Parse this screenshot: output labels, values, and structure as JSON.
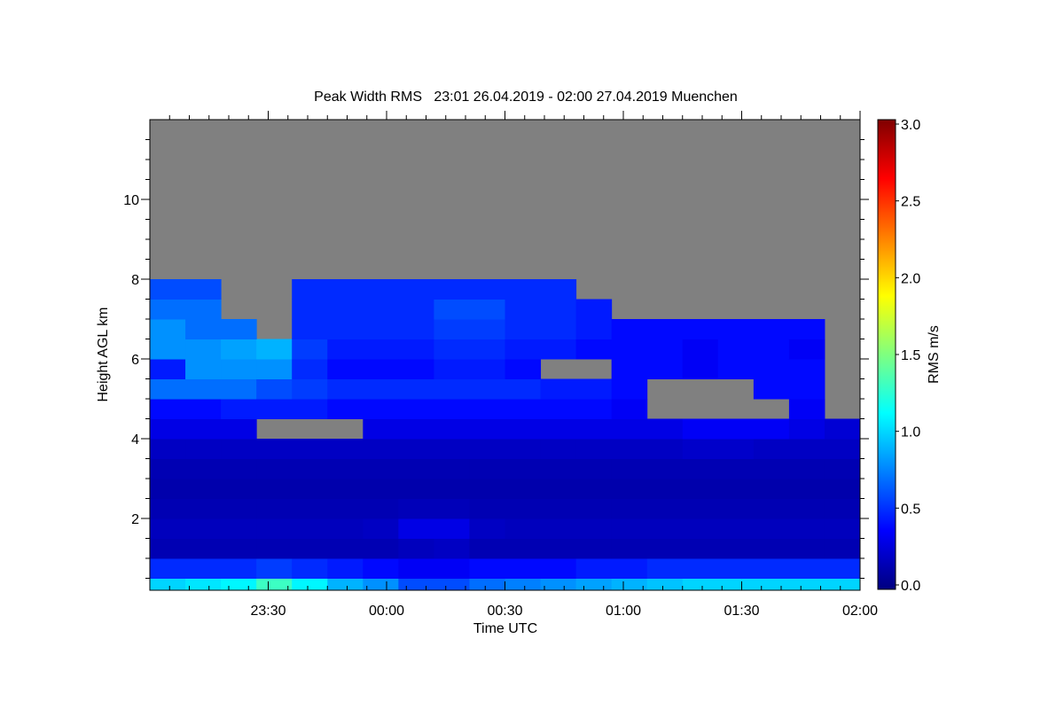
{
  "chart_data": {
    "type": "heatmap",
    "title": "Peak Width RMS   23:01 26.04.2019 - 02:00 27.04.2019 Muenchen",
    "xlabel": "Time UTC",
    "ylabel": "Height AGL km",
    "colorbar": {
      "label": "RMS m/s",
      "range": [
        0.0,
        3.0
      ],
      "ticks": [
        "0.0",
        "0.5",
        "1.0",
        "1.5",
        "2.0",
        "2.5",
        "3.0"
      ],
      "colormap": "jet"
    },
    "x_range_minutes_after_2300": [
      0,
      180
    ],
    "x_ticks": [
      {
        "label": "23:30",
        "minutes": 30
      },
      {
        "label": "00:00",
        "minutes": 60
      },
      {
        "label": "00:30",
        "minutes": 90
      },
      {
        "label": "01:00",
        "minutes": 120
      },
      {
        "label": "01:30",
        "minutes": 150
      },
      {
        "label": "02:00",
        "minutes": 180
      }
    ],
    "y_range_km": [
      0.2,
      12
    ],
    "y_ticks": [
      {
        "label": "2",
        "value": 2
      },
      {
        "label": "4",
        "value": 4
      },
      {
        "label": "6",
        "value": 6
      },
      {
        "label": "8",
        "value": 8
      },
      {
        "label": "10",
        "value": 10
      }
    ],
    "no_data_color": "#808080",
    "time_bin_minutes": 9,
    "height_bin_km": 0.5,
    "grid_rows_bottom_to_top": [
      [
        1.0,
        1.05,
        1.1,
        1.3,
        1.1,
        0.9,
        0.8,
        0.6,
        0.6,
        0.7,
        0.75,
        0.8,
        0.85,
        0.9,
        0.95,
        1.0,
        1.0,
        1.0,
        1.0,
        1.0
      ],
      [
        0.5,
        0.5,
        0.5,
        0.55,
        0.5,
        0.45,
        0.4,
        0.35,
        0.35,
        0.4,
        0.4,
        0.4,
        0.45,
        0.45,
        0.5,
        0.5,
        0.5,
        0.5,
        0.5,
        0.5
      ],
      [
        0.15,
        0.15,
        0.15,
        0.15,
        0.15,
        0.15,
        0.15,
        0.18,
        0.2,
        0.15,
        0.15,
        0.15,
        0.15,
        0.15,
        0.15,
        0.15,
        0.15,
        0.15,
        0.15,
        0.15
      ],
      [
        0.18,
        0.18,
        0.18,
        0.18,
        0.18,
        0.18,
        0.2,
        0.3,
        0.3,
        0.2,
        0.18,
        0.18,
        0.18,
        0.18,
        0.18,
        0.18,
        0.18,
        0.18,
        0.18,
        0.18
      ],
      [
        0.15,
        0.15,
        0.15,
        0.15,
        0.15,
        0.15,
        0.15,
        0.17,
        0.17,
        0.15,
        0.15,
        0.15,
        0.15,
        0.15,
        0.15,
        0.15,
        0.15,
        0.15,
        0.15,
        0.15
      ],
      [
        0.13,
        0.13,
        0.13,
        0.13,
        0.13,
        0.13,
        0.13,
        0.13,
        0.13,
        0.13,
        0.13,
        0.13,
        0.13,
        0.13,
        0.13,
        0.13,
        0.13,
        0.13,
        0.13,
        0.13
      ],
      [
        0.15,
        0.15,
        0.15,
        0.15,
        0.15,
        0.15,
        0.15,
        0.15,
        0.15,
        0.15,
        0.15,
        0.15,
        0.15,
        0.15,
        0.15,
        0.15,
        0.15,
        0.15,
        0.15,
        0.15
      ],
      [
        0.2,
        0.2,
        0.2,
        0.2,
        0.2,
        0.2,
        0.2,
        0.2,
        0.2,
        0.2,
        0.2,
        0.2,
        0.2,
        0.2,
        0.2,
        0.22,
        0.22,
        0.2,
        0.2,
        0.2
      ],
      [
        0.3,
        0.3,
        0.3,
        null,
        null,
        null,
        0.3,
        0.3,
        0.3,
        0.3,
        0.3,
        0.3,
        0.3,
        0.3,
        0.3,
        0.35,
        0.35,
        0.35,
        0.3,
        0.25
      ],
      [
        0.4,
        0.4,
        0.45,
        0.45,
        0.45,
        0.4,
        0.4,
        0.4,
        0.4,
        0.4,
        0.4,
        0.4,
        0.4,
        0.35,
        null,
        null,
        null,
        null,
        0.35,
        null
      ],
      [
        0.7,
        0.7,
        0.7,
        0.6,
        0.55,
        0.5,
        0.5,
        0.5,
        0.5,
        0.5,
        0.5,
        0.45,
        0.45,
        0.4,
        null,
        null,
        null,
        0.4,
        0.4,
        null
      ],
      [
        0.45,
        0.8,
        0.8,
        0.8,
        0.5,
        0.4,
        0.4,
        0.4,
        0.45,
        0.45,
        0.4,
        null,
        null,
        0.4,
        0.4,
        0.35,
        0.4,
        0.4,
        0.4,
        null
      ],
      [
        0.8,
        0.8,
        0.85,
        0.9,
        0.55,
        0.45,
        0.45,
        0.45,
        0.5,
        0.5,
        0.45,
        0.45,
        0.4,
        0.4,
        0.4,
        0.35,
        0.4,
        0.4,
        0.35,
        null
      ],
      [
        0.8,
        0.7,
        0.7,
        null,
        0.5,
        0.5,
        0.5,
        0.5,
        0.55,
        0.55,
        0.5,
        0.5,
        0.45,
        0.4,
        0.4,
        0.4,
        0.4,
        0.4,
        0.4,
        null
      ],
      [
        0.7,
        0.7,
        null,
        null,
        0.5,
        0.5,
        0.5,
        0.5,
        0.6,
        0.6,
        0.5,
        0.5,
        0.45,
        null,
        null,
        null,
        null,
        null,
        null,
        null
      ],
      [
        0.6,
        0.6,
        null,
        null,
        0.5,
        0.5,
        0.5,
        0.5,
        0.5,
        0.5,
        0.5,
        0.5,
        null,
        null,
        null,
        null,
        null,
        null,
        null,
        null
      ]
    ]
  }
}
